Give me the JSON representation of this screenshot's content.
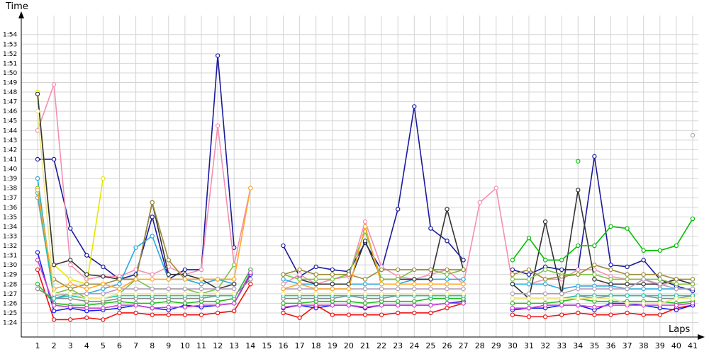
{
  "chart_data": {
    "type": "line",
    "xlabel": "Laps",
    "ylabel": "Time",
    "x": [
      1,
      2,
      3,
      4,
      5,
      6,
      7,
      8,
      9,
      10,
      11,
      12,
      13,
      14,
      15,
      16,
      17,
      18,
      19,
      20,
      21,
      22,
      23,
      24,
      25,
      26,
      27,
      28,
      29,
      30,
      31,
      32,
      33,
      34,
      35,
      36,
      37,
      38,
      39,
      40,
      41
    ],
    "ylim": [
      83,
      115
    ],
    "y_ticks": [
      84,
      85,
      86,
      87,
      88,
      89,
      90,
      91,
      92,
      93,
      94,
      95,
      96,
      97,
      98,
      99,
      100,
      101,
      102,
      103,
      104,
      105,
      106,
      107,
      108,
      109,
      110,
      111,
      112,
      113,
      114
    ],
    "y_tick_labels": [
      "1:24",
      "1:25",
      "1:26",
      "1:27",
      "1:28",
      "1:29",
      "1:30",
      "1:31",
      "1:32",
      "1:33",
      "1:34",
      "1:35",
      "1:36",
      "1:37",
      "1:38",
      "1:39",
      "1:40",
      "1:41",
      "1:42",
      "1:43",
      "1:44",
      "1:45",
      "1:46",
      "1:47",
      "1:48",
      "1:49",
      "1:50",
      "1:51",
      "1:52",
      "1:53",
      "1:54"
    ],
    "grid": true,
    "series": [
      {
        "color": "#ee1111",
        "values": [
          89.5,
          84.3,
          84.3,
          84.5,
          84.3,
          85.0,
          85.0,
          84.8,
          84.8,
          84.8,
          84.8,
          85.0,
          85.2,
          88.0,
          null,
          85.0,
          84.5,
          85.8,
          84.8,
          84.8,
          84.8,
          84.8,
          85.0,
          85.0,
          85.0,
          85.5,
          86.0,
          null,
          null,
          84.8,
          84.6,
          84.6,
          84.8,
          85.0,
          84.8,
          84.8,
          85.0,
          84.8,
          84.8,
          85.5,
          85.8
        ]
      },
      {
        "color": "#1a1aee",
        "values": [
          91.3,
          85.2,
          85.5,
          85.2,
          85.3,
          85.5,
          85.8,
          85.5,
          85.3,
          85.8,
          85.6,
          85.8,
          86.0,
          89.0,
          null,
          85.5,
          85.8,
          85.5,
          85.8,
          85.8,
          85.5,
          85.8,
          85.8,
          85.8,
          85.8,
          86.0,
          86.2,
          null,
          null,
          85.3,
          85.5,
          85.5,
          85.8,
          85.8,
          85.3,
          86.0,
          86.0,
          85.8,
          85.5,
          85.3,
          85.8
        ]
      },
      {
        "color": "#22bb22",
        "values": [
          88.0,
          86.0,
          85.8,
          85.8,
          86.0,
          86.2,
          86.0,
          86.0,
          86.2,
          86.0,
          86.2,
          86.2,
          86.5,
          89.5,
          null,
          86.0,
          86.0,
          86.2,
          86.2,
          86.2,
          86.0,
          86.2,
          86.2,
          86.2,
          86.5,
          86.5,
          86.5,
          null,
          null,
          86.0,
          86.0,
          86.0,
          86.2,
          86.5,
          86.2,
          86.2,
          86.2,
          86.2,
          86.2,
          86.0,
          86.2
        ]
      },
      {
        "color": "#cc44cc",
        "values": [
          90.5,
          85.8,
          85.6,
          85.5,
          85.5,
          85.8,
          85.8,
          85.5,
          85.6,
          85.6,
          85.8,
          85.8,
          86.0,
          89.2,
          null,
          85.6,
          85.8,
          85.8,
          85.8,
          85.8,
          85.6,
          85.8,
          85.8,
          85.8,
          85.8,
          86.0,
          86.0,
          null,
          null,
          85.5,
          85.5,
          85.8,
          85.8,
          85.8,
          85.6,
          85.8,
          85.8,
          85.8,
          85.8,
          85.8,
          86.0
        ]
      },
      {
        "color": "#8a8a8a",
        "values": [
          87.5,
          86.5,
          86.5,
          86.2,
          86.2,
          86.5,
          86.5,
          86.5,
          86.5,
          86.5,
          86.5,
          86.8,
          86.8,
          88.5,
          null,
          86.5,
          86.5,
          86.5,
          86.5,
          86.8,
          86.5,
          86.5,
          86.8,
          86.8,
          86.8,
          86.8,
          86.8,
          null,
          null,
          86.5,
          86.5,
          86.5,
          86.5,
          86.8,
          86.5,
          86.8,
          86.8,
          86.8,
          86.5,
          86.5,
          86.8
        ]
      },
      {
        "color": "#1a1a9e",
        "values": [
          101.0,
          101.0,
          93.8,
          91.0,
          89.8,
          88.5,
          89.0,
          95.0,
          88.5,
          89.5,
          89.5,
          111.8,
          91.8,
          null,
          null,
          92.0,
          88.8,
          89.8,
          89.5,
          89.3,
          92.3,
          89.5,
          95.8,
          106.5,
          93.8,
          92.5,
          90.5,
          null,
          null,
          89.5,
          89.0,
          89.8,
          89.5,
          89.5,
          101.3,
          90.0,
          89.8,
          90.5,
          88.5,
          87.8,
          87.3
        ]
      },
      {
        "color": "#f48fb1",
        "values": [
          104.0,
          108.8,
          90.0,
          88.5,
          88.8,
          88.8,
          89.5,
          89.0,
          89.8,
          89.0,
          89.5,
          104.5,
          90.0,
          98.0,
          null,
          88.0,
          89.0,
          88.0,
          88.5,
          88.8,
          94.5,
          89.8,
          88.8,
          88.5,
          89.0,
          89.5,
          88.0,
          96.5,
          98.0,
          88.0,
          88.0,
          88.5,
          88.5,
          89.5,
          89.5,
          88.8,
          88.5,
          88.5,
          87.8,
          88.5,
          88.0
        ]
      },
      {
        "color": "#e6e600",
        "values": [
          108.0,
          90.0,
          88.5,
          88.0,
          99.0,
          null,
          null,
          null,
          null,
          null,
          null,
          null,
          null,
          null,
          null,
          null,
          null,
          null,
          null,
          null,
          null,
          null,
          null,
          null,
          null,
          null,
          null,
          null,
          null,
          null,
          null,
          null,
          null,
          null,
          null,
          null,
          null,
          null,
          null,
          null,
          null
        ]
      },
      {
        "color": "#29a8e0",
        "values": [
          99.0,
          86.5,
          87.0,
          87.0,
          87.5,
          88.0,
          91.8,
          93.0,
          88.5,
          88.5,
          88.0,
          88.5,
          88.0,
          null,
          null,
          88.5,
          88.0,
          88.0,
          88.0,
          88.0,
          88.0,
          88.0,
          88.0,
          88.5,
          88.5,
          88.5,
          88.5,
          null,
          null,
          88.0,
          88.0,
          88.0,
          87.5,
          87.8,
          87.8,
          87.8,
          87.5,
          87.5,
          87.5,
          87.5,
          87.5
        ]
      },
      {
        "color": "#333333",
        "values": [
          107.8,
          90.0,
          90.5,
          89.0,
          88.8,
          88.5,
          88.5,
          96.5,
          89.0,
          89.0,
          88.5,
          87.5,
          88.0,
          null,
          null,
          null,
          88.5,
          88.0,
          88.0,
          88.0,
          92.5,
          88.5,
          88.5,
          88.5,
          88.5,
          95.8,
          89.5,
          null,
          null,
          88.0,
          86.5,
          94.5,
          87.0,
          97.8,
          88.5,
          88.0,
          88.0,
          88.0,
          88.0,
          88.5,
          88.0
        ]
      },
      {
        "color": "#7cc242",
        "values": [
          98.0,
          87.0,
          87.5,
          86.5,
          86.5,
          87.0,
          88.5,
          87.5,
          87.5,
          87.5,
          87.0,
          87.5,
          90.0,
          null,
          null,
          89.0,
          88.5,
          88.5,
          88.5,
          89.0,
          93.5,
          88.5,
          88.5,
          89.5,
          89.5,
          89.0,
          89.5,
          null,
          null,
          88.5,
          88.5,
          89.5,
          89.0,
          89.0,
          89.0,
          88.5,
          88.5,
          88.5,
          88.5,
          88.0,
          88.0
        ]
      },
      {
        "color": "#9a8c3a",
        "values": [
          null,
          88.5,
          87.5,
          88.0,
          88.0,
          88.5,
          88.5,
          96.5,
          90.5,
          88.5,
          88.5,
          88.5,
          88.5,
          null,
          null,
          89.0,
          89.5,
          89.0,
          89.0,
          89.0,
          88.5,
          89.5,
          89.5,
          89.5,
          89.5,
          89.5,
          89.5,
          null,
          null,
          89.0,
          89.5,
          88.5,
          88.8,
          89.0,
          90.0,
          89.5,
          89.0,
          89.0,
          89.0,
          88.5,
          88.5
        ]
      },
      {
        "color": "#b09ab8",
        "values": [
          97.0,
          86.8,
          87.0,
          87.0,
          87.0,
          87.5,
          87.5,
          87.5,
          87.5,
          87.5,
          87.5,
          87.5,
          87.5,
          null,
          null,
          87.5,
          87.5,
          87.5,
          87.5,
          87.5,
          87.5,
          87.5,
          87.5,
          87.5,
          87.5,
          87.5,
          87.5,
          null,
          null,
          87.0,
          87.0,
          87.0,
          87.0,
          87.5,
          87.5,
          87.5,
          87.5,
          88.5,
          88.0,
          87.5,
          87.5
        ]
      },
      {
        "color": "#21c3a8",
        "values": [
          97.5,
          86.5,
          86.8,
          86.5,
          86.5,
          86.8,
          86.8,
          86.8,
          86.8,
          86.8,
          86.8,
          86.8,
          86.8,
          null,
          null,
          86.8,
          86.8,
          86.8,
          86.8,
          86.8,
          86.8,
          86.8,
          86.8,
          86.8,
          86.8,
          86.8,
          86.8,
          null,
          null,
          86.5,
          86.5,
          86.5,
          86.5,
          86.8,
          86.8,
          86.8,
          86.8,
          86.8,
          86.8,
          86.8,
          86.8
        ]
      },
      {
        "color": "#ffa726",
        "values": [
          97.8,
          87.5,
          88.0,
          87.5,
          88.0,
          87.5,
          88.5,
          88.5,
          88.5,
          88.5,
          88.5,
          88.5,
          88.5,
          98.0,
          null,
          87.5,
          88.0,
          87.5,
          87.5,
          87.5,
          94.0,
          88.0,
          88.0,
          88.0,
          88.0,
          88.0,
          88.0,
          null,
          null,
          null,
          null,
          null,
          null,
          null,
          null,
          null,
          null,
          null,
          null,
          null,
          null
        ]
      },
      {
        "color": "#f0e68c",
        "values": [
          106.0,
          87.0,
          87.0,
          86.5,
          86.5,
          87.0,
          87.0,
          87.0,
          87.0,
          87.0,
          87.0,
          87.0,
          87.0,
          null,
          null,
          87.0,
          87.0,
          87.0,
          87.0,
          87.0,
          87.0,
          87.0,
          87.0,
          87.0,
          87.0,
          87.0,
          87.0,
          null,
          null,
          86.5,
          86.5,
          86.5,
          86.5,
          86.5,
          86.5,
          86.5,
          86.0,
          86.0,
          86.0,
          86.5,
          86.5
        ]
      },
      {
        "color": "#00c000",
        "values": [
          null,
          null,
          null,
          null,
          null,
          null,
          null,
          null,
          null,
          null,
          null,
          null,
          null,
          null,
          null,
          null,
          null,
          null,
          null,
          null,
          null,
          null,
          null,
          null,
          null,
          null,
          null,
          null,
          null,
          90.5,
          92.8,
          90.5,
          90.5,
          92.0,
          92.0,
          94.0,
          93.8,
          91.5,
          91.5,
          92.0,
          94.8
        ]
      },
      {
        "color": "#00d000",
        "values": [
          null,
          null,
          null,
          null,
          null,
          null,
          null,
          null,
          null,
          null,
          null,
          null,
          null,
          null,
          null,
          null,
          null,
          null,
          null,
          null,
          null,
          null,
          null,
          null,
          null,
          null,
          null,
          null,
          null,
          null,
          null,
          null,
          null,
          100.8,
          null,
          null,
          null,
          null,
          null,
          null,
          null
        ]
      },
      {
        "color": "#aaaaaa",
        "values": [
          null,
          null,
          null,
          null,
          null,
          null,
          null,
          null,
          null,
          null,
          null,
          null,
          null,
          null,
          null,
          null,
          null,
          null,
          null,
          null,
          null,
          null,
          null,
          null,
          null,
          null,
          null,
          null,
          null,
          null,
          null,
          null,
          null,
          null,
          null,
          null,
          null,
          null,
          null,
          null,
          103.5
        ]
      }
    ]
  }
}
